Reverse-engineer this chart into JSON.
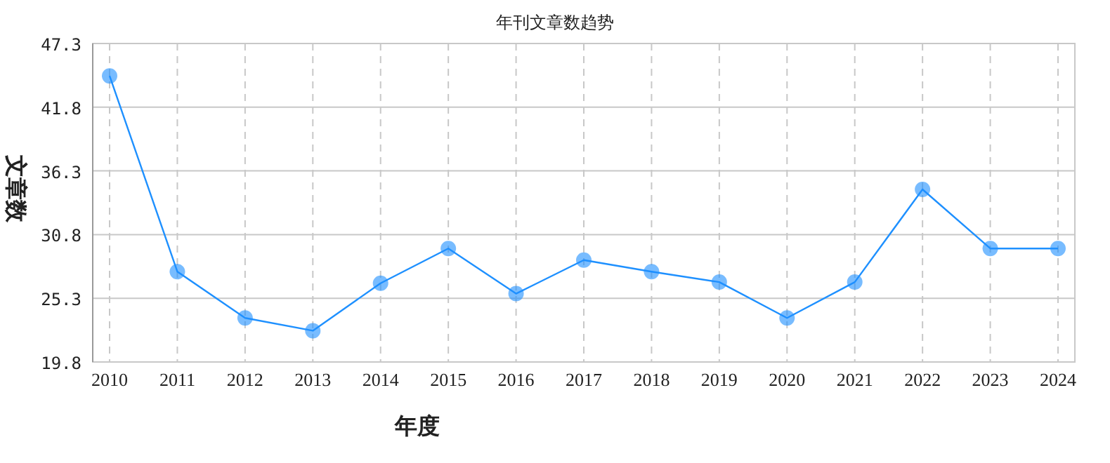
{
  "chart_data": {
    "type": "line",
    "title": "年刊文章数趋势",
    "xlabel": "年度",
    "ylabel": "文章数",
    "categories": [
      "2010",
      "2011",
      "2012",
      "2013",
      "2014",
      "2015",
      "2016",
      "2017",
      "2018",
      "2019",
      "2020",
      "2021",
      "2022",
      "2023",
      "2024"
    ],
    "series": [
      {
        "color": "#1e90ff",
        "values": [
          44.5,
          27.6,
          23.6,
          22.5,
          26.6,
          29.6,
          25.7,
          28.6,
          27.6,
          26.7,
          23.6,
          26.7,
          34.7,
          29.6,
          29.6
        ]
      }
    ],
    "ylim": [
      19.8,
      47.3
    ],
    "yticks": [
      19.8,
      25.3,
      30.8,
      36.3,
      41.8,
      47.3
    ],
    "grid": true,
    "marker": "circle",
    "line_style": "solid"
  }
}
